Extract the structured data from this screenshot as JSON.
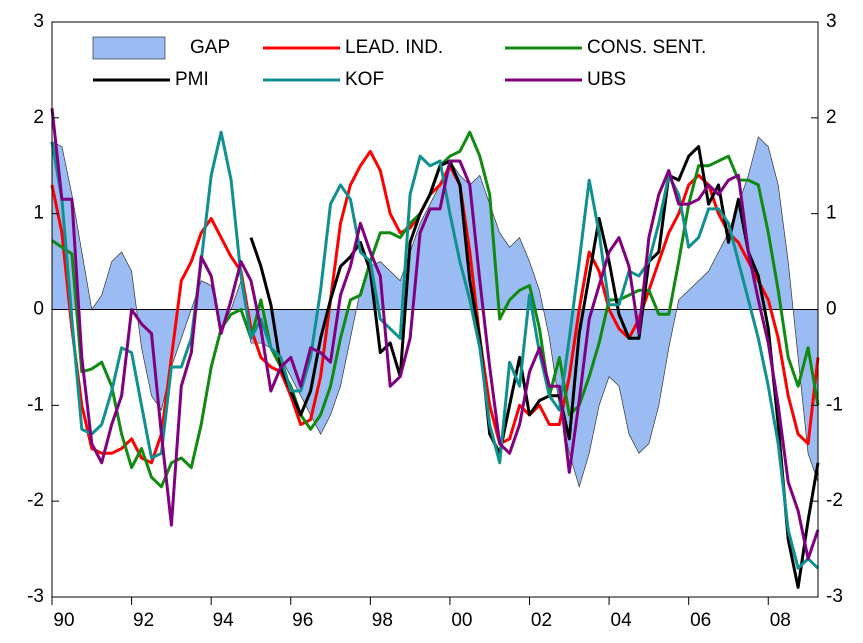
{
  "chart_data": {
    "type": "line",
    "x": [
      1990,
      1990.25,
      1990.5,
      1990.75,
      1991,
      1991.25,
      1991.5,
      1991.75,
      1992,
      1992.25,
      1992.5,
      1992.75,
      1993,
      1993.25,
      1993.5,
      1993.75,
      1994,
      1994.25,
      1994.5,
      1994.75,
      1995,
      1995.25,
      1995.5,
      1995.75,
      1996,
      1996.25,
      1996.5,
      1996.75,
      1997,
      1997.25,
      1997.5,
      1997.75,
      1998,
      1998.25,
      1998.5,
      1998.75,
      1999,
      1999.25,
      1999.5,
      1999.75,
      2000,
      2000.25,
      2000.5,
      2000.75,
      2001,
      2001.25,
      2001.5,
      2001.75,
      2002,
      2002.25,
      2002.5,
      2002.75,
      2003,
      2003.25,
      2003.5,
      2003.75,
      2004,
      2004.25,
      2004.5,
      2004.75,
      2005,
      2005.25,
      2005.5,
      2005.75,
      2006,
      2006.25,
      2006.5,
      2006.75,
      2007,
      2007.25,
      2007.5,
      2007.75,
      2008,
      2008.25,
      2008.5,
      2008.75,
      2009,
      2009.25
    ],
    "xlim": [
      1990,
      2009.25
    ],
    "xticks": [
      {
        "value": 1990,
        "label": "90"
      },
      {
        "value": 1992,
        "label": "92"
      },
      {
        "value": 1994,
        "label": "94"
      },
      {
        "value": 1996,
        "label": "96"
      },
      {
        "value": 1998,
        "label": "98"
      },
      {
        "value": 2000,
        "label": "00"
      },
      {
        "value": 2002,
        "label": "02"
      },
      {
        "value": 2004,
        "label": "04"
      },
      {
        "value": 2006,
        "label": "06"
      },
      {
        "value": 2008,
        "label": "08"
      }
    ],
    "ylim": [
      -3,
      3
    ],
    "yticks": [
      -3,
      -2,
      -1,
      0,
      1,
      2,
      3
    ],
    "series": [
      {
        "name": "GAP",
        "kind": "area",
        "color": "#9bbcf2",
        "values": [
          1.75,
          1.7,
          1.2,
          0.6,
          0.0,
          0.15,
          0.5,
          0.6,
          0.4,
          -0.4,
          -0.9,
          -1.05,
          -0.6,
          -0.3,
          0.0,
          0.3,
          0.25,
          -0.2,
          0.0,
          0.3,
          -0.35,
          -0.35,
          -0.4,
          -0.5,
          -0.7,
          -0.9,
          -1.1,
          -1.3,
          -1.1,
          -0.8,
          -0.3,
          0.2,
          0.45,
          0.5,
          0.4,
          0.3,
          0.6,
          0.9,
          1.1,
          1.3,
          1.55,
          1.4,
          1.3,
          1.4,
          1.1,
          0.8,
          0.65,
          0.75,
          0.5,
          0.2,
          -0.3,
          -1.0,
          -1.5,
          -1.85,
          -1.5,
          -1.0,
          -0.7,
          -0.8,
          -1.3,
          -1.5,
          -1.4,
          -1.0,
          -0.4,
          0.1,
          0.2,
          0.3,
          0.4,
          0.6,
          0.8,
          1.1,
          1.4,
          1.8,
          1.7,
          1.3,
          0.5,
          -0.5,
          -1.5,
          -1.8
        ]
      },
      {
        "name": "LEAD. IND.",
        "color": "#ff0000",
        "values": [
          1.3,
          0.8,
          -0.2,
          -1.0,
          -1.45,
          -1.5,
          -1.5,
          -1.45,
          -1.35,
          -1.55,
          -1.6,
          -1.3,
          -0.5,
          0.3,
          0.5,
          0.8,
          0.95,
          0.75,
          0.55,
          0.4,
          -0.2,
          -0.5,
          -0.6,
          -0.65,
          -0.9,
          -1.2,
          -1.15,
          -0.7,
          0.1,
          0.9,
          1.3,
          1.5,
          1.65,
          1.45,
          1.0,
          0.8,
          0.85,
          1.0,
          1.2,
          1.3,
          1.5,
          1.3,
          0.6,
          -0.3,
          -1.0,
          -1.4,
          -1.35,
          -1.0,
          -1.1,
          -1.0,
          -1.2,
          -1.2,
          -0.7,
          0.0,
          0.6,
          0.4,
          0.0,
          -0.2,
          -0.3,
          -0.1,
          0.2,
          0.5,
          0.8,
          1.0,
          1.3,
          1.4,
          1.3,
          1.0,
          0.8,
          0.7,
          0.5,
          0.3,
          0.1,
          -0.3,
          -0.9,
          -1.3,
          -1.4,
          -0.5
        ]
      },
      {
        "name": "CONS. SENT.",
        "color": "#108a10",
        "values": [
          0.72,
          0.65,
          0.58,
          -0.65,
          -0.62,
          -0.55,
          -0.8,
          -1.3,
          -1.65,
          -1.45,
          -1.75,
          -1.85,
          -1.6,
          -1.55,
          -1.65,
          -1.2,
          -0.6,
          -0.2,
          -0.05,
          0.0,
          -0.3,
          0.1,
          -0.4,
          -0.6,
          -0.8,
          -1.1,
          -1.25,
          -1.1,
          -0.8,
          -0.3,
          0.1,
          0.15,
          0.5,
          0.8,
          0.8,
          0.75,
          0.9,
          1.0,
          1.2,
          1.5,
          1.6,
          1.65,
          1.85,
          1.6,
          1.2,
          -0.1,
          0.1,
          0.2,
          0.25,
          -0.2,
          -0.9,
          -0.5,
          -1.1,
          -1.0,
          -0.7,
          -0.35,
          0.1,
          0.1,
          0.15,
          0.2,
          0.2,
          -0.05,
          -0.05,
          0.5,
          1.1,
          1.5,
          1.5,
          1.55,
          1.6,
          1.35,
          1.35,
          1.3,
          0.8,
          0.2,
          -0.5,
          -0.8,
          -0.4,
          -1.0
        ]
      },
      {
        "name": "PMI",
        "color": "#000000",
        "values": [
          null,
          null,
          null,
          null,
          null,
          null,
          null,
          null,
          null,
          null,
          null,
          null,
          null,
          null,
          null,
          null,
          null,
          null,
          null,
          null,
          0.75,
          0.45,
          0.05,
          -0.6,
          -0.85,
          -1.1,
          -0.85,
          -0.3,
          0.1,
          0.45,
          0.55,
          0.7,
          0.4,
          -0.45,
          -0.35,
          -0.7,
          0.7,
          1.0,
          1.2,
          1.5,
          1.55,
          1.3,
          0.3,
          -0.3,
          -1.3,
          -1.5,
          -1.0,
          -0.5,
          -1.1,
          -0.95,
          -0.9,
          -0.9,
          -1.35,
          -0.25,
          0.35,
          0.95,
          0.5,
          -0.05,
          -0.3,
          -0.3,
          0.5,
          0.6,
          1.4,
          1.35,
          1.6,
          1.7,
          1.1,
          1.3,
          0.7,
          1.15,
          0.6,
          0.35,
          -0.2,
          -1.2,
          -2.4,
          -2.9,
          -2.2,
          -1.6
        ]
      },
      {
        "name": "KOF",
        "color": "#10908e",
        "values": [
          1.75,
          1.15,
          -0.1,
          -1.25,
          -1.3,
          -1.2,
          -0.85,
          -0.4,
          -0.45,
          -1.0,
          -1.55,
          -1.5,
          -0.6,
          -0.6,
          -0.3,
          0.5,
          1.4,
          1.85,
          1.35,
          0.35,
          -0.3,
          -0.1,
          -0.4,
          -0.5,
          -0.85,
          -0.85,
          -0.5,
          0.2,
          1.1,
          1.3,
          1.15,
          0.6,
          0.5,
          -0.1,
          -0.2,
          -0.3,
          1.2,
          1.6,
          1.5,
          1.55,
          1.0,
          0.5,
          0.1,
          -0.4,
          -1.2,
          -1.6,
          -0.55,
          -0.8,
          0.15,
          -0.45,
          -0.9,
          -1.05,
          -0.3,
          0.5,
          1.35,
          0.8,
          0.05,
          0.05,
          0.4,
          0.35,
          0.5,
          0.9,
          1.4,
          1.2,
          0.65,
          0.75,
          1.05,
          1.05,
          0.9,
          0.5,
          0.1,
          -0.3,
          -0.8,
          -1.4,
          -2.3,
          -2.7,
          -2.6,
          -2.7
        ]
      },
      {
        "name": "UBS",
        "color": "#800080",
        "values": [
          2.1,
          1.15,
          1.15,
          -0.5,
          -1.4,
          -1.6,
          -1.2,
          -0.9,
          0.0,
          -0.15,
          -0.25,
          -1.3,
          -2.25,
          -0.8,
          -0.45,
          0.55,
          0.35,
          -0.25,
          0.1,
          0.5,
          0.3,
          -0.2,
          -0.85,
          -0.6,
          -0.5,
          -0.8,
          -0.4,
          -0.45,
          -0.55,
          0.15,
          0.45,
          0.9,
          0.6,
          0.35,
          -0.8,
          -0.7,
          -0.3,
          0.8,
          1.05,
          1.05,
          1.55,
          1.55,
          1.3,
          0.3,
          -0.6,
          -1.4,
          -1.5,
          -1.2,
          -0.65,
          -0.4,
          -0.8,
          -0.8,
          -1.7,
          -0.95,
          -0.1,
          0.25,
          0.6,
          0.75,
          0.45,
          -0.25,
          0.75,
          1.2,
          1.45,
          1.1,
          1.1,
          1.15,
          1.3,
          1.2,
          1.35,
          1.4,
          0.6,
          0.1,
          -0.35,
          -1.0,
          -1.8,
          -2.1,
          -2.6,
          -2.3
        ]
      }
    ]
  }
}
